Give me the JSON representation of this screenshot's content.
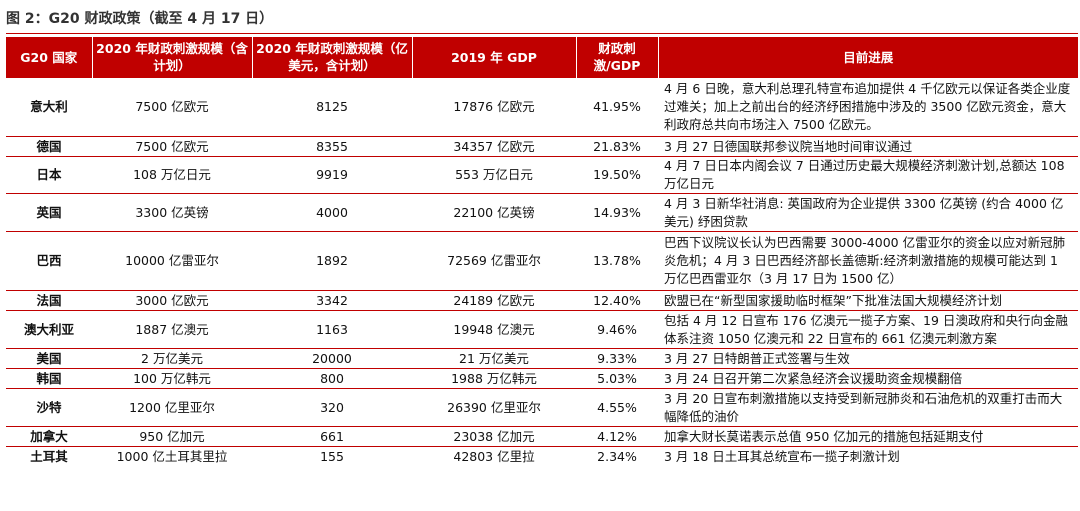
{
  "title": "图 2：G20 财政政策（截至 4 月 17 日）",
  "colors": {
    "header_bg": "#c00000",
    "header_text": "#ffffff",
    "rule": "#c00000"
  },
  "headers": {
    "country": "G20 国家",
    "scale_local": "2020 年财政刺激规模（含计划）",
    "scale_usd": "2020 年财政刺激规模（亿美元，含计划）",
    "gdp": "2019 年 GDP",
    "ratio": "财政刺激/GDP",
    "progress": "目前进展"
  },
  "rows": [
    {
      "country": "意大利",
      "scale_local": "7500 亿欧元",
      "scale_usd": "8125",
      "gdp": "17876 亿欧元",
      "ratio": "41.95%",
      "progress": "4 月 6 日晚，意大利总理孔特宣布追加提供 4 千亿欧元以保证各类企业度过难关；加上之前出台的经济纾困措施中涉及的 3500 亿欧元资金，意大利政府总共向市场注入 7500 亿欧元。"
    },
    {
      "country": "德国",
      "scale_local": "7500 亿欧元",
      "scale_usd": "8355",
      "gdp": "34357 亿欧元",
      "ratio": "21.83%",
      "progress": "3 月 27 日德国联邦参议院当地时间审议通过"
    },
    {
      "country": "日本",
      "scale_local": "108 万亿日元",
      "scale_usd": "9919",
      "gdp": "553 万亿日元",
      "ratio": "19.50%",
      "progress": "4 月 7 日日本内阁会议 7 日通过历史最大规模经济刺激计划,总额达 108 万亿日元"
    },
    {
      "country": "英国",
      "scale_local": "3300 亿英镑",
      "scale_usd": "4000",
      "gdp": "22100 亿英镑",
      "ratio": "14.93%",
      "progress": "4 月 3 日新华社消息: 英国政府为企业提供 3300 亿英镑 (约合 4000 亿美元) 纾困贷款"
    },
    {
      "country": "巴西",
      "scale_local": "10000 亿雷亚尔",
      "scale_usd": "1892",
      "gdp": "72569 亿雷亚尔",
      "ratio": "13.78%",
      "progress": "巴西下议院议长认为巴西需要 3000-4000 亿雷亚尔的资金以应对新冠肺炎危机；4 月 3 日巴西经济部长盖德斯:经济刺激措施的规模可能达到 1 万亿巴西雷亚尔（3 月 17 日为 1500 亿）"
    },
    {
      "country": "法国",
      "scale_local": "3000 亿欧元",
      "scale_usd": "3342",
      "gdp": "24189 亿欧元",
      "ratio": "12.40%",
      "progress": "欧盟已在“新型国家援助临时框架”下批准法国大规模经济计划"
    },
    {
      "country": "澳大利亚",
      "scale_local": "1887 亿澳元",
      "scale_usd": "1163",
      "gdp": "19948 亿澳元",
      "ratio": "9.46%",
      "progress": "包括 4 月 12 日宣布 176 亿澳元一揽子方案、19 日澳政府和央行向金融体系注资 1050 亿澳元和 22 日宣布的 661 亿澳元刺激方案"
    },
    {
      "country": "美国",
      "scale_local": "2 万亿美元",
      "scale_usd": "20000",
      "gdp": "21 万亿美元",
      "ratio": "9.33%",
      "progress": "3 月 27 日特朗普正式签署与生效"
    },
    {
      "country": "韩国",
      "scale_local": "100 万亿韩元",
      "scale_usd": "800",
      "gdp": "1988 万亿韩元",
      "ratio": "5.03%",
      "progress": "3 月 24 日召开第二次紧急经济会议援助资金规模翻倍"
    },
    {
      "country": "沙特",
      "scale_local": "1200 亿里亚尔",
      "scale_usd": "320",
      "gdp": "26390 亿里亚尔",
      "ratio": "4.55%",
      "progress": "3 月 20 日宣布刺激措施以支持受到新冠肺炎和石油危机的双重打击而大幅降低的油价"
    },
    {
      "country": "加拿大",
      "scale_local": "950 亿加元",
      "scale_usd": "661",
      "gdp": "23038 亿加元",
      "ratio": "4.12%",
      "progress": "加拿大财长莫诺表示总值 950 亿加元的措施包括延期支付"
    },
    {
      "country": "土耳其",
      "scale_local": "1000 亿土耳其里拉",
      "scale_usd": "155",
      "gdp": "42803 亿里拉",
      "ratio": "2.34%",
      "progress": "3 月 18 日土耳其总统宣布一揽子刺激计划"
    }
  ]
}
